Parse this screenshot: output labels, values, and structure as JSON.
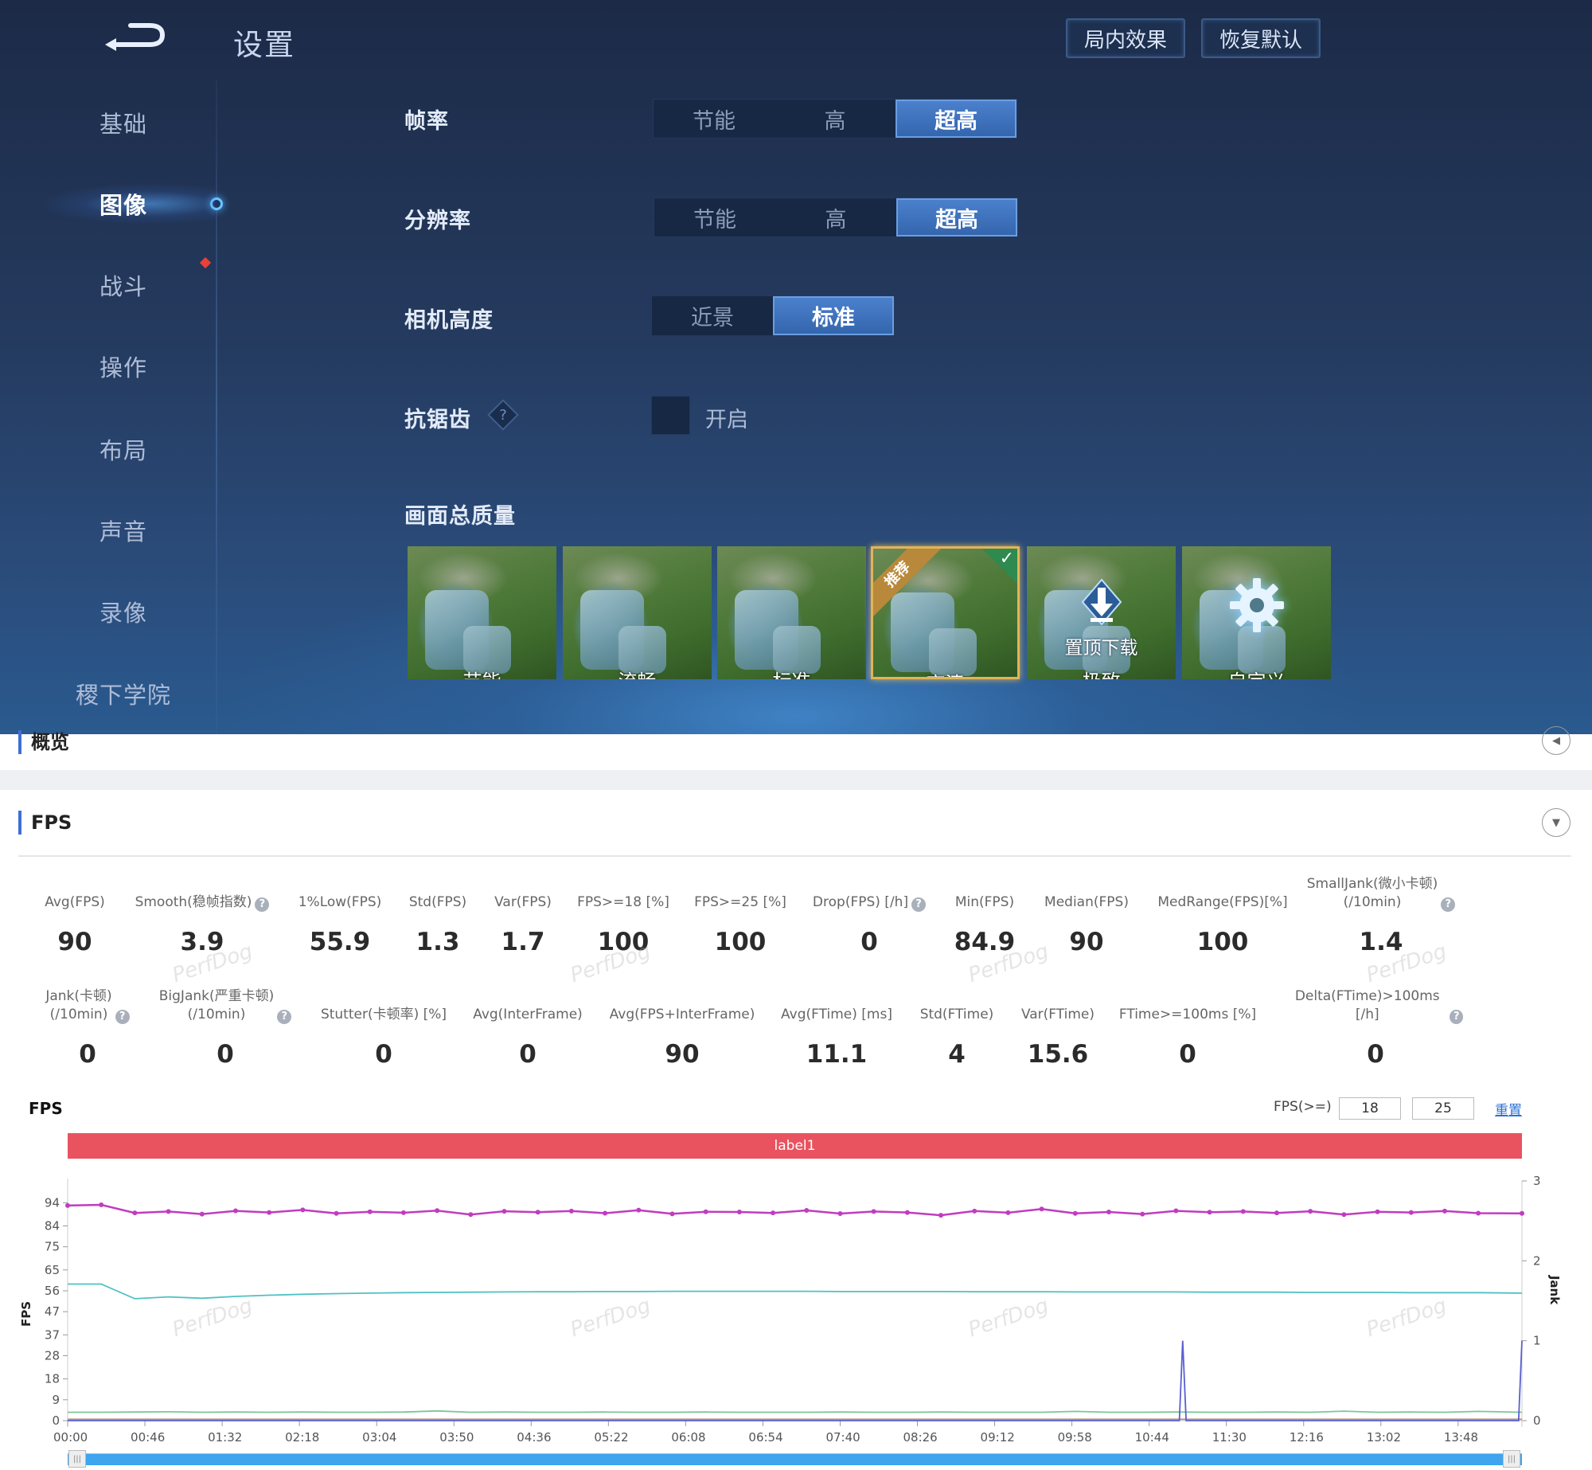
{
  "game": {
    "title": "设置",
    "buttons": [
      "局内效果",
      "恢复默认"
    ],
    "sidebar": [
      {
        "label": "基础",
        "active": false
      },
      {
        "label": "图像",
        "active": true
      },
      {
        "label": "战斗",
        "active": false
      },
      {
        "label": "操作",
        "active": false
      },
      {
        "label": "布局",
        "active": false
      },
      {
        "label": "声音",
        "active": false
      },
      {
        "label": "录像",
        "active": false
      },
      {
        "label": "稷下学院",
        "active": false
      }
    ],
    "settings": {
      "frame_rate": {
        "label": "帧率",
        "options": [
          "节能",
          "高",
          "超高"
        ],
        "selected": 2
      },
      "resolution": {
        "label": "分辨率",
        "options": [
          "节能",
          "高",
          "超高"
        ],
        "selected": 2
      },
      "camera_height": {
        "label": "相机高度",
        "options": [
          "近景",
          "标准"
        ],
        "selected": 1
      },
      "anti_alias": {
        "label": "抗锯齿",
        "help": "?",
        "checkbox_label": "开启",
        "checked": false
      },
      "quality": {
        "label": "画面总质量",
        "presets": [
          "节能",
          "流畅",
          "标准",
          "高清",
          "极致",
          "自定义"
        ],
        "selected": 3,
        "recommended_badge": "推荐",
        "download_label": "置顶下载"
      }
    }
  },
  "report": {
    "overview_title": "概览",
    "fps_section_title": "FPS",
    "watermark": "PerfDog",
    "stats_row1": [
      {
        "label": "Avg(FPS)",
        "value": "90",
        "help": false
      },
      {
        "label": "Smooth(稳帧指数)",
        "value": "3.9",
        "help": true
      },
      {
        "label": "1%Low(FPS)",
        "value": "55.9",
        "help": false
      },
      {
        "label": "Std(FPS)",
        "value": "1.3",
        "help": false
      },
      {
        "label": "Var(FPS)",
        "value": "1.7",
        "help": false
      },
      {
        "label": "FPS>=18 [%]",
        "value": "100",
        "help": false
      },
      {
        "label": "FPS>=25 [%]",
        "value": "100",
        "help": false
      },
      {
        "label": "Drop(FPS) [/h]",
        "value": "0",
        "help": true
      },
      {
        "label": "Min(FPS)",
        "value": "84.9",
        "help": false
      },
      {
        "label": "Median(FPS)",
        "value": "90",
        "help": false
      },
      {
        "label": "MedRange(FPS)[%]",
        "value": "100",
        "help": false
      },
      {
        "label": "SmallJank(微小卡顿)\n(/10min)",
        "value": "1.4",
        "help": true
      }
    ],
    "stats_row2": [
      {
        "label": "Jank(卡顿)\n(/10min)",
        "value": "0",
        "help": true
      },
      {
        "label": "BigJank(严重卡顿)\n(/10min)",
        "value": "0",
        "help": true
      },
      {
        "label": "Stutter(卡顿率) [%]",
        "value": "0",
        "help": false
      },
      {
        "label": "Avg(InterFrame)",
        "value": "0",
        "help": false
      },
      {
        "label": "Avg(FPS+InterFrame)",
        "value": "90",
        "help": false
      },
      {
        "label": "Avg(FTime) [ms]",
        "value": "11.1",
        "help": false
      },
      {
        "label": "Std(FTime)",
        "value": "4",
        "help": false
      },
      {
        "label": "Var(FTime)",
        "value": "15.6",
        "help": false
      },
      {
        "label": "FTime>=100ms [%]",
        "value": "0",
        "help": false
      },
      {
        "label": "Delta(FTime)>100ms [/h]",
        "value": "0",
        "help": true
      }
    ],
    "chart_title": "FPS",
    "threshold_label": "FPS(>=)",
    "threshold_values": [
      "18",
      "25"
    ],
    "reset_label": "重置",
    "label_band": "label1"
  },
  "chart_data": {
    "type": "line",
    "title": "FPS",
    "ylabel": "FPS",
    "y2label": "Jank",
    "ylim": [
      0,
      103.4
    ],
    "y2lim": [
      0,
      3
    ],
    "xlim": [
      "00:00",
      "14:26"
    ],
    "grid": false,
    "yticks": [
      0,
      9,
      18,
      28,
      37,
      47,
      56,
      65,
      75,
      84,
      94
    ],
    "y2ticks": [
      0,
      1,
      2,
      3
    ],
    "xticks": [
      "00:00",
      "00:46",
      "01:32",
      "02:18",
      "03:04",
      "03:50",
      "04:36",
      "05:22",
      "06:08",
      "06:54",
      "07:40",
      "08:26",
      "09:12",
      "09:58",
      "10:44",
      "11:30",
      "12:16",
      "13:02",
      "13:48"
    ],
    "x": [
      "00:00",
      "00:20",
      "00:40",
      "01:00",
      "01:20",
      "01:40",
      "02:00",
      "02:20",
      "02:40",
      "03:00",
      "03:20",
      "03:40",
      "04:00",
      "04:20",
      "04:40",
      "05:00",
      "05:20",
      "05:40",
      "06:00",
      "06:20",
      "06:40",
      "07:00",
      "07:20",
      "07:40",
      "08:00",
      "08:20",
      "08:40",
      "09:00",
      "09:20",
      "09:40",
      "10:00",
      "10:20",
      "10:40",
      "11:00",
      "11:20",
      "11:40",
      "12:00",
      "12:20",
      "12:40",
      "13:00",
      "13:20",
      "13:40",
      "14:00",
      "14:26"
    ],
    "series": [
      {
        "axis": "left",
        "color": "#c03cc0",
        "values": [
          92.8,
          93.1,
          89.6,
          90.2,
          89.1,
          90.5,
          89.8,
          90.9,
          89.4,
          90.1,
          89.7,
          90.6,
          88.9,
          90.3,
          89.9,
          90.4,
          89.5,
          90.8,
          89.2,
          90.1,
          90.0,
          89.6,
          90.7,
          89.3,
          90.2,
          89.8,
          88.6,
          90.4,
          89.7,
          91.3,
          89.4,
          90.0,
          89.1,
          90.5,
          89.9,
          90.2,
          89.6,
          90.3,
          88.9,
          90.1,
          89.8,
          90.4,
          89.5,
          89.4
        ]
      },
      {
        "axis": "left",
        "color": "#4fc1c4",
        "values": [
          58.9,
          58.9,
          52.6,
          53.4,
          52.8,
          53.6,
          54.1,
          54.5,
          54.8,
          55.0,
          55.2,
          55.3,
          55.4,
          55.5,
          55.6,
          55.6,
          55.7,
          55.7,
          55.8,
          55.8,
          55.8,
          55.8,
          55.8,
          55.7,
          55.7,
          55.7,
          55.7,
          55.6,
          55.6,
          55.6,
          55.5,
          55.5,
          55.5,
          55.5,
          55.4,
          55.4,
          55.4,
          55.3,
          55.3,
          55.3,
          55.2,
          55.2,
          55.2,
          55.0
        ]
      },
      {
        "axis": "left",
        "color": "#7cc69a",
        "values": [
          3.6,
          3.6,
          3.7,
          3.8,
          3.6,
          3.7,
          3.6,
          3.7,
          3.6,
          3.6,
          3.7,
          4.2,
          3.6,
          3.7,
          3.6,
          3.6,
          3.7,
          3.6,
          3.6,
          3.7,
          3.6,
          3.6,
          3.6,
          3.7,
          3.6,
          3.6,
          3.7,
          3.6,
          3.6,
          3.6,
          4.0,
          3.6,
          3.6,
          3.7,
          3.6,
          3.6,
          3.7,
          3.6,
          4.1,
          3.6,
          3.7,
          3.6,
          4.0,
          3.6
        ]
      },
      {
        "axis": "left",
        "color": "#b89080",
        "values": [
          0.6,
          0.6,
          0.6,
          0.6,
          0.6,
          0.6,
          0.6,
          0.6,
          0.6,
          0.6,
          0.6,
          0.6,
          0.6,
          0.6,
          0.6,
          0.6,
          0.6,
          0.6,
          0.6,
          0.6,
          0.6,
          0.6,
          0.6,
          0.6,
          0.6,
          0.6,
          0.6,
          0.6,
          0.6,
          0.6,
          0.6,
          0.6,
          0.6,
          0.6,
          0.6,
          0.6,
          0.6,
          0.6,
          0.6,
          0.6,
          0.6,
          0.6,
          0.6,
          0.6
        ]
      },
      {
        "axis": "right",
        "color": "#5a5fd0",
        "x": [
          "00:00",
          "11:02",
          "11:04",
          "11:06",
          "14:24",
          "14:26"
        ],
        "values": [
          0,
          0,
          1,
          0,
          0,
          1
        ]
      }
    ]
  }
}
